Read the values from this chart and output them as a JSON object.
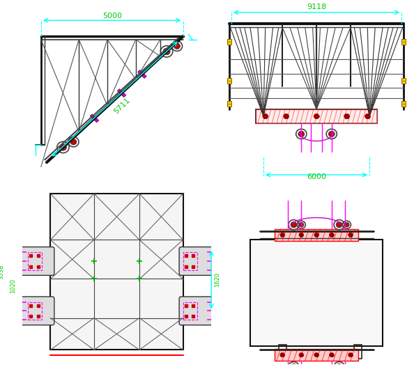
{
  "background": "#ffffff",
  "fig_width": 5.94,
  "fig_height": 5.27,
  "dpi": 100,
  "dim_color": "#00ffff",
  "dim_text_color": "#00cc00",
  "magenta": "#ff00ff",
  "red": "#ff0000",
  "yellow": "#ffcc00",
  "dark": "#222222",
  "gray": "#666666",
  "lightgray": "#aaaaaa",
  "dims": {
    "top_left_horiz": "5000",
    "top_left_diag": "5711",
    "top_right_horiz": "9118",
    "top_right_vert": "6000",
    "bot_left_vert": "3538",
    "bot_left_mid": "1020",
    "bot_left_right": "1620"
  }
}
